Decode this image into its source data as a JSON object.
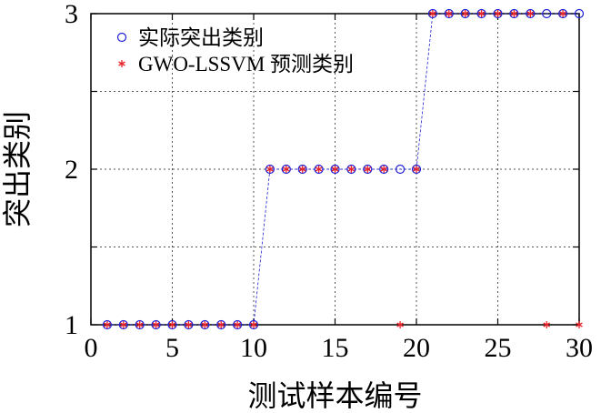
{
  "chart_data": {
    "type": "scatter",
    "xlabel": "测试样本编号",
    "ylabel": "突出类别",
    "xlim": [
      0,
      30
    ],
    "ylim": [
      1,
      3
    ],
    "xticks": [
      0,
      5,
      10,
      15,
      20,
      25,
      30
    ],
    "yticks": [
      1,
      2,
      3
    ],
    "grid": true,
    "legend_position": "top-left",
    "series": [
      {
        "name": "实际突出类别",
        "marker": "circle",
        "color": "#1f1fd6",
        "x": [
          1,
          2,
          3,
          4,
          5,
          6,
          7,
          8,
          9,
          10,
          11,
          12,
          13,
          14,
          15,
          16,
          17,
          18,
          19,
          20,
          21,
          22,
          23,
          24,
          25,
          26,
          27,
          28,
          29,
          30
        ],
        "values": [
          1,
          1,
          1,
          1,
          1,
          1,
          1,
          1,
          1,
          1,
          2,
          2,
          2,
          2,
          2,
          2,
          2,
          2,
          2,
          2,
          3,
          3,
          3,
          3,
          3,
          3,
          3,
          3,
          3,
          3
        ]
      },
      {
        "name": "GWO-LSSVM 预测类别",
        "marker": "asterisk",
        "color": "#e8242a",
        "x": [
          1,
          2,
          3,
          4,
          5,
          6,
          7,
          8,
          9,
          10,
          11,
          12,
          13,
          14,
          15,
          16,
          17,
          18,
          19,
          20,
          21,
          22,
          23,
          24,
          25,
          26,
          27,
          28,
          29,
          30
        ],
        "values": [
          1,
          1,
          1,
          1,
          1,
          1,
          1,
          1,
          1,
          1,
          2,
          2,
          2,
          2,
          2,
          2,
          2,
          2,
          1,
          2,
          3,
          3,
          3,
          3,
          3,
          3,
          3,
          1,
          3,
          1
        ]
      }
    ]
  }
}
